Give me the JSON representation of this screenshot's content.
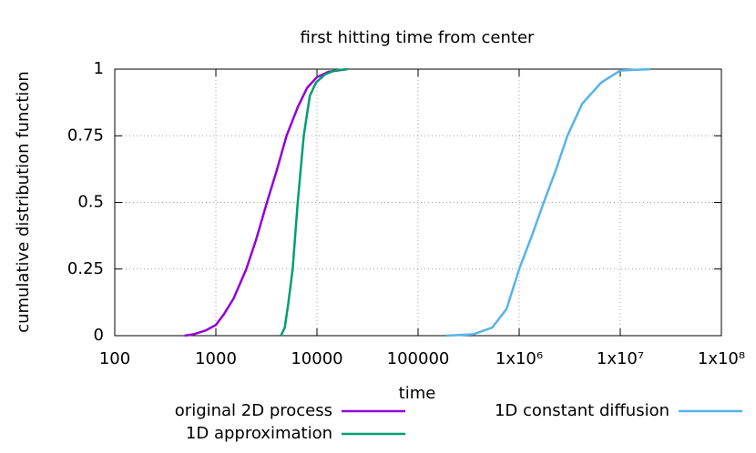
{
  "chart_data": {
    "type": "line",
    "title": "first hitting time from center",
    "x_label": "time",
    "y_label": "cumulative distribution function",
    "logscale": "x",
    "grid": true,
    "legend": "bottom",
    "xlim": [
      100,
      100000000
    ],
    "ylim": [
      0,
      1
    ],
    "xticks": [
      100,
      1000,
      10000,
      100000,
      {
        "value": 1000000,
        "label": "1x10⁶"
      },
      {
        "value": 10000000,
        "label": "1x10⁷"
      },
      {
        "value": 100000000,
        "label": "1x10⁸"
      }
    ],
    "yticks": [
      0,
      0.25,
      0.5,
      0.75,
      1
    ],
    "series": [
      {
        "name": "original 2D process",
        "color": "#9400d3",
        "x": [
          490,
          600,
          800,
          1000,
          1200,
          1500,
          2000,
          2500,
          3200,
          4000,
          5000,
          6500,
          8000,
          10000,
          13000,
          20000
        ],
        "values": [
          0,
          0.005,
          0.02,
          0.04,
          0.08,
          0.14,
          0.25,
          0.36,
          0.5,
          0.62,
          0.75,
          0.86,
          0.93,
          0.97,
          0.99,
          1
        ]
      },
      {
        "name": "1D approximation",
        "color": "#009e73",
        "x": [
          4400,
          4800,
          5200,
          5750,
          6450,
          7400,
          8500,
          9800,
          12000,
          15000,
          20000
        ],
        "values": [
          0,
          0.03,
          0.12,
          0.25,
          0.5,
          0.75,
          0.9,
          0.95,
          0.98,
          0.995,
          1
        ]
      },
      {
        "name": "1D constant diffusion",
        "color": "#56b4e9",
        "x": [
          190000,
          350000,
          540000,
          750000,
          1000000,
          1350000,
          1750000,
          2300000,
          3000000,
          4200000,
          6500000,
          10000000,
          20000000
        ],
        "values": [
          0,
          0.005,
          0.03,
          0.1,
          0.25,
          0.38,
          0.5,
          0.62,
          0.75,
          0.87,
          0.95,
          0.995,
          1
        ]
      }
    ]
  }
}
